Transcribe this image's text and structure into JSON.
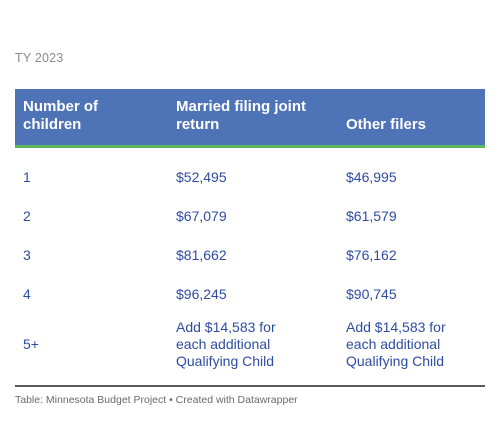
{
  "subtitle": "TY 2023",
  "table": {
    "headers": [
      [
        "Number of",
        "children"
      ],
      [
        "Married filing joint",
        "return"
      ],
      [
        "Other filers"
      ]
    ],
    "rows": [
      {
        "children": "1",
        "married": [
          "$52,495"
        ],
        "other": [
          "$46,995"
        ]
      },
      {
        "children": "2",
        "married": [
          "$67,079"
        ],
        "other": [
          "$61,579"
        ]
      },
      {
        "children": "3",
        "married": [
          "$81,662"
        ],
        "other": [
          "$76,162"
        ]
      },
      {
        "children": "4",
        "married": [
          "$96,245"
        ],
        "other": [
          "$90,745"
        ]
      },
      {
        "children": "5+",
        "married": [
          "Add $14,583 for",
          "each additional",
          "Qualifying Child"
        ],
        "other": [
          "Add $14,583 for",
          "each additional",
          "Qualifying Child"
        ]
      }
    ]
  },
  "footer": "Table: Minnesota Budget Project • Created with Datawrapper",
  "colors": {
    "header_bg": "#4f73b7",
    "header_rule": "#5cb85c",
    "cell_text": "#2e4ca1",
    "subtitle_text": "#8a8a8a"
  }
}
